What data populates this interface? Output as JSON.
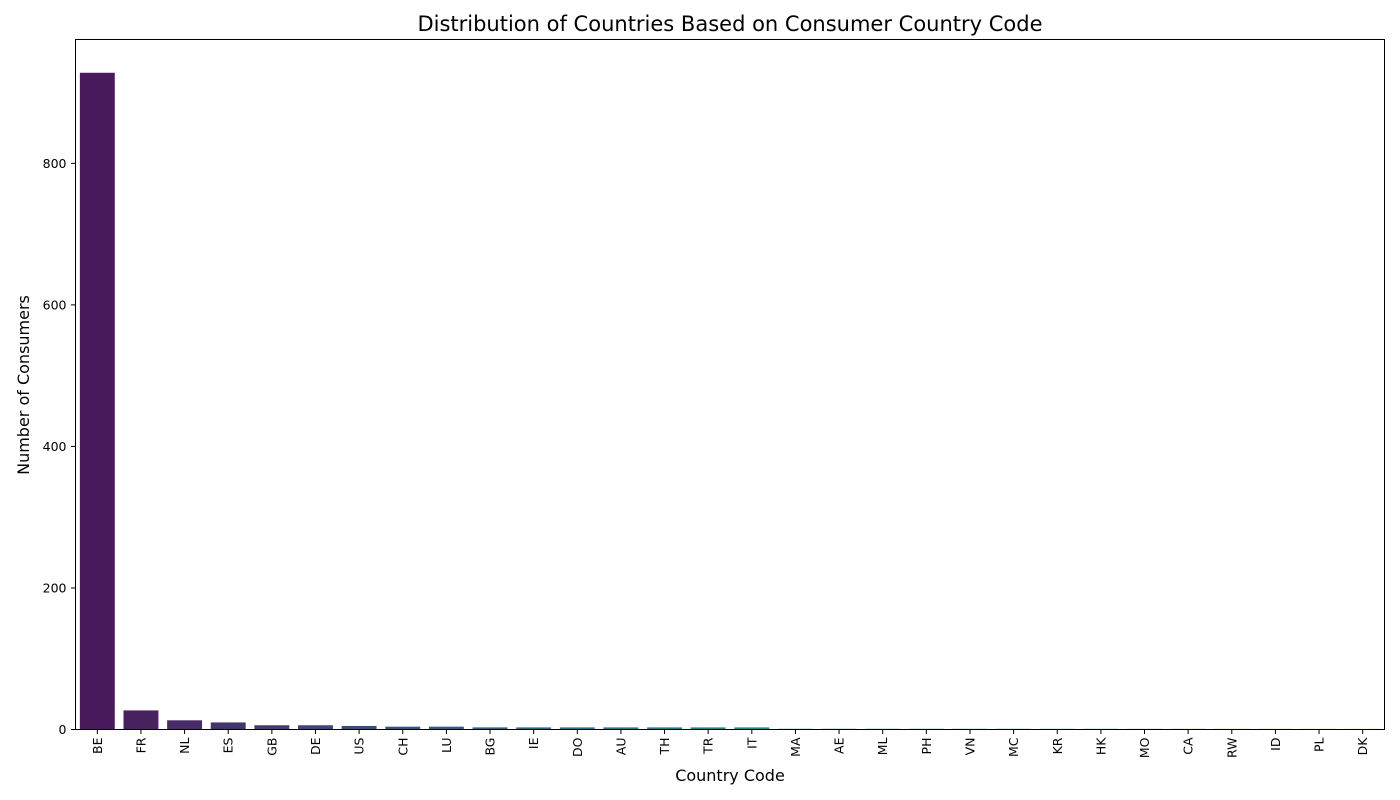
{
  "chart_data": {
    "type": "bar",
    "title": "Distribution of Countries Based on Consumer Country Code",
    "xlabel": "Country Code",
    "ylabel": "Number of Consumers",
    "categories": [
      "BE",
      "FR",
      "NL",
      "ES",
      "GB",
      "DE",
      "US",
      "CH",
      "LU",
      "BG",
      "IE",
      "DO",
      "AU",
      "TH",
      "TR",
      "IT",
      "MA",
      "AE",
      "ML",
      "PH",
      "VN",
      "MC",
      "KR",
      "HK",
      "MO",
      "CA",
      "RW",
      "ID",
      "PL",
      "DK"
    ],
    "values": [
      928,
      27,
      13,
      10,
      6,
      6,
      5,
      4,
      4,
      3,
      3,
      3,
      3,
      3,
      3,
      3,
      1,
      1,
      1,
      1,
      1,
      1,
      1,
      1,
      1,
      1,
      1,
      1,
      1,
      1
    ],
    "ylim": [
      0,
      975
    ],
    "yticks": [
      0,
      200,
      400,
      600,
      800
    ],
    "colors": [
      "#481a5c",
      "#48235f",
      "#472c67",
      "#45336c",
      "#433c71",
      "#414476",
      "#3d4b7a",
      "#3a537d",
      "#365a80",
      "#336282",
      "#306884",
      "#2d6f86",
      "#2b7587",
      "#287c88",
      "#26838a",
      "#23898a",
      "#21908b",
      "#1f978b",
      "#20a08a",
      "#26a687",
      "#30ad83",
      "#3db57e",
      "#4cbc78",
      "#5dc26e",
      "#6fca66",
      "#84cf5b",
      "#9ad54f",
      "#b0da45",
      "#c8df3a",
      "#dfe33c"
    ],
    "grid": false,
    "legend": "none"
  }
}
